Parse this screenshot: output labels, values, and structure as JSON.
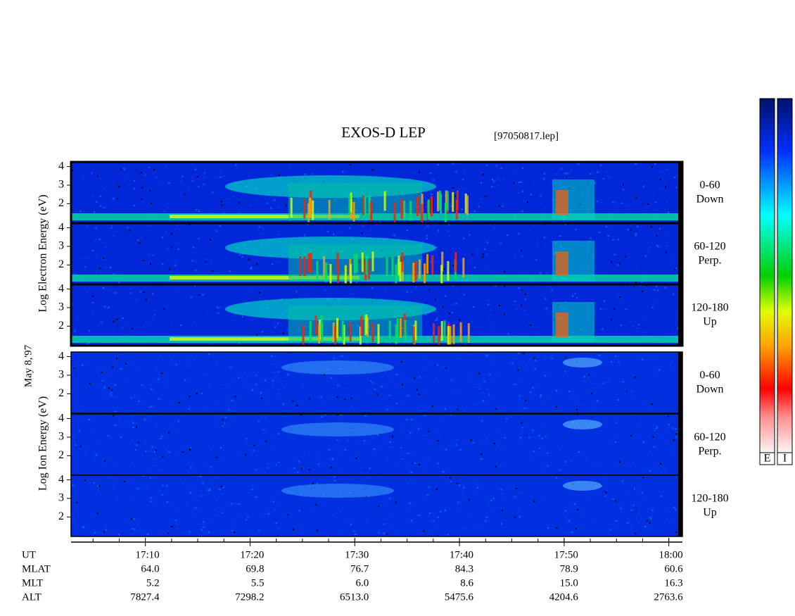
{
  "chart_data": {
    "type": "spectrogram",
    "title": "EXOS-D LEP",
    "filename": "[97050817.lep]",
    "date_label": "May 8,'97",
    "groups": [
      {
        "axis_label": "Log Electron Energy (eV)",
        "colorbar_label": "E"
      },
      {
        "axis_label": "Log Ion Energy (eV)",
        "colorbar_label": "I"
      }
    ],
    "panels": [
      {
        "group": 0,
        "labels": [
          "0-60",
          "Down"
        ]
      },
      {
        "group": 0,
        "labels": [
          "60-120",
          "Perp."
        ]
      },
      {
        "group": 0,
        "labels": [
          "120-180",
          "Up"
        ]
      },
      {
        "group": 1,
        "labels": [
          "0-60",
          "Down"
        ]
      },
      {
        "group": 1,
        "labels": [
          "60-120",
          "Perp."
        ]
      },
      {
        "group": 1,
        "labels": [
          "120-180",
          "Up"
        ]
      }
    ],
    "ylim": [
      0.95,
      4.25
    ],
    "yticks": [
      2,
      3,
      4
    ],
    "xlim": [
      1022.9,
      1081.3
    ],
    "xticks": [
      {
        "value": 1030,
        "label": "17:10"
      },
      {
        "value": 1040,
        "label": "17:20"
      },
      {
        "value": 1050,
        "label": "17:30"
      },
      {
        "value": 1060,
        "label": "17:40"
      },
      {
        "value": 1070,
        "label": "17:50"
      },
      {
        "value": 1080,
        "label": "18:00"
      }
    ],
    "ephemeris": [
      {
        "name": "UT",
        "values": []
      },
      {
        "name": "MLAT",
        "values": [
          "64.0",
          "69.8",
          "76.7",
          "84.3",
          "78.9",
          "60.6"
        ]
      },
      {
        "name": "MLT",
        "values": [
          "5.2",
          "5.5",
          "6.0",
          "8.6",
          "15.0",
          "16.3"
        ]
      },
      {
        "name": "ALT",
        "values": [
          "7827.4",
          "7298.2",
          "6513.0",
          "5475.6",
          "4204.6",
          "2763.6"
        ]
      }
    ]
  }
}
